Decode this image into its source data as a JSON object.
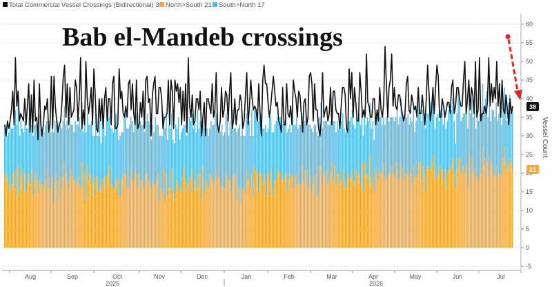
{
  "chart_data": {
    "type": "bar",
    "title": "Bab el-Mandeb crossings",
    "ylabel": "Vessel Count",
    "ylim": [
      -5,
      62
    ],
    "yticks": [
      -5,
      0,
      5,
      10,
      15,
      20,
      25,
      30,
      35,
      40,
      45,
      50,
      55,
      60
    ],
    "grid": true,
    "legend_position": "top-left",
    "legend": [
      {
        "label": "Total Commercial Vessel Crossings (Bidirectional) 38",
        "color": "#111111"
      },
      {
        "label": "North>South 21",
        "color": "#f5a833"
      },
      {
        "label": "South>North 17",
        "color": "#56bde6"
      }
    ],
    "x_month_labels": [
      "Aug",
      "Sep",
      "Oct",
      "Nov",
      "Dec",
      "Jan",
      "Feb",
      "Mar",
      "Apr",
      "May",
      "Jun",
      "Jul"
    ],
    "x_year_labels": [
      "2025",
      "2026"
    ],
    "last_values": {
      "total": "38",
      "north_south": "21"
    },
    "series_names": [
      "Total Commercial Vessel Crossings (Bidirectional)",
      "North>South",
      "South>North"
    ],
    "series": [
      {
        "name": "North>South",
        "values": [
          20,
          18,
          20,
          17,
          15,
          17,
          20,
          16,
          21,
          14,
          22,
          16,
          19,
          21,
          15,
          20,
          15,
          18,
          20,
          17,
          21,
          14,
          18,
          20,
          18,
          15,
          18,
          17,
          17,
          16,
          18,
          21,
          16,
          19,
          16,
          19,
          12,
          17,
          20,
          18,
          13,
          19,
          16,
          19,
          23,
          20,
          18,
          16,
          19,
          21,
          19,
          18,
          18,
          17,
          19,
          17,
          16,
          23,
          16,
          20,
          13,
          22,
          18,
          20,
          19,
          17,
          14,
          19,
          19,
          15,
          17,
          15,
          18,
          19,
          16,
          19,
          20,
          22,
          17,
          17,
          16,
          16,
          19,
          18,
          14,
          14,
          18,
          19,
          20,
          20,
          16,
          16,
          19,
          21,
          18,
          18,
          21,
          20,
          16,
          20,
          18,
          18,
          16,
          17,
          20,
          20,
          18,
          17,
          16,
          18,
          17,
          17,
          18,
          20,
          13,
          16,
          15,
          21,
          13,
          20,
          14,
          16,
          16,
          21,
          15,
          13,
          16,
          18,
          17,
          15,
          15,
          19,
          22,
          18,
          17,
          15,
          19,
          18,
          21,
          15,
          18,
          16,
          20,
          16,
          20,
          13,
          22,
          15,
          18,
          17,
          16,
          20,
          19,
          18,
          17,
          19,
          21,
          19,
          19,
          16,
          17,
          16,
          16,
          20,
          19,
          18,
          18,
          15,
          19,
          20,
          20,
          13,
          17,
          16,
          12,
          16,
          16,
          15,
          21,
          18,
          18,
          16,
          20,
          14,
          22,
          21,
          20,
          15,
          20,
          20,
          17,
          20,
          18,
          14,
          20,
          18,
          21,
          14,
          16,
          18,
          18,
          21,
          20,
          20,
          18,
          18,
          19,
          20,
          15,
          18,
          20,
          19,
          20,
          16,
          19,
          20,
          17,
          17,
          17,
          22,
          18,
          21,
          17,
          21,
          16,
          19,
          15,
          17,
          19,
          20,
          14,
          14,
          22,
          22,
          17,
          20,
          19,
          21,
          17,
          18,
          20,
          23,
          18,
          22,
          17,
          20,
          20,
          17,
          18,
          21,
          16,
          18,
          16,
          20,
          19,
          18,
          21,
          18,
          17,
          21,
          19,
          20,
          17,
          23,
          15,
          23,
          19,
          20,
          17,
          25,
          19,
          17,
          15,
          21,
          20,
          18,
          21,
          20,
          20,
          23,
          19,
          18,
          19,
          20,
          20,
          22,
          20,
          19,
          23,
          21,
          18,
          19,
          23,
          21,
          18,
          20,
          20,
          19,
          21,
          20,
          17,
          22,
          19,
          19,
          20,
          23,
          23,
          18,
          22,
          20,
          15,
          21,
          22,
          21,
          21,
          23,
          25,
          18,
          21,
          19,
          20,
          22,
          21,
          18,
          21,
          16,
          20,
          21,
          21,
          22,
          24,
          20,
          16,
          21,
          24,
          24,
          20,
          21,
          22,
          20,
          22,
          17,
          25,
          20,
          24,
          20,
          21,
          19,
          19,
          18,
          21,
          20,
          27,
          22,
          24,
          23,
          19,
          24,
          21,
          23,
          20,
          19,
          22,
          19,
          20,
          20,
          19,
          24,
          27,
          23,
          21,
          22,
          24,
          23,
          21
        ]
      },
      {
        "name": "South>North",
        "values": [
          13,
          14,
          10,
          14,
          18,
          15,
          12,
          17,
          16,
          19,
          20,
          14,
          15,
          11,
          16,
          14,
          17,
          14,
          15,
          14,
          12,
          16,
          15,
          13,
          12,
          16,
          18,
          15,
          13,
          15,
          15,
          13,
          15,
          15,
          15,
          15,
          19,
          17,
          13,
          16,
          18,
          14,
          16,
          15,
          15,
          13,
          16,
          16,
          16,
          12,
          14,
          13,
          16,
          16,
          14,
          18,
          16,
          16,
          15,
          16,
          18,
          14,
          15,
          13,
          15,
          13,
          16,
          18,
          11,
          15,
          17,
          13,
          16,
          13,
          14,
          15,
          18,
          13,
          15,
          15,
          15,
          17,
          17,
          15,
          15,
          16,
          13,
          12,
          16,
          16,
          16,
          16,
          14,
          14,
          16,
          13,
          14,
          16,
          16,
          13,
          16,
          15,
          17,
          14,
          14,
          16,
          16,
          16,
          13,
          15,
          14,
          18,
          15,
          13,
          17,
          14,
          15,
          15,
          19,
          16,
          15,
          17,
          16,
          15,
          14,
          15,
          17,
          14,
          18,
          14,
          16,
          13,
          11,
          15,
          13,
          16,
          16,
          16,
          15,
          17,
          15,
          15,
          17,
          16,
          14,
          18,
          12,
          17,
          15,
          15,
          14,
          12,
          15,
          15,
          16,
          18,
          15,
          14,
          13,
          15,
          16,
          14,
          15,
          16,
          16,
          12,
          16,
          17,
          18,
          12,
          12,
          18,
          15,
          17,
          18,
          18,
          14,
          15,
          15,
          16,
          16,
          14,
          17,
          16,
          15,
          16,
          15,
          19,
          15,
          16,
          15,
          12,
          15,
          17,
          12,
          17,
          14,
          17,
          15,
          15,
          16,
          14,
          15,
          15,
          16,
          15,
          15,
          14,
          16,
          14,
          13,
          12,
          16,
          17,
          14,
          15,
          15,
          16,
          16,
          14,
          15,
          13,
          16,
          14,
          17,
          14,
          17,
          14,
          14,
          13,
          17,
          16,
          13,
          17,
          15,
          14,
          15,
          13,
          16,
          15,
          14,
          12,
          16,
          12,
          14,
          14,
          12,
          17,
          16,
          15,
          16,
          13,
          16,
          14,
          15,
          17,
          16,
          15,
          15,
          14,
          15,
          16,
          16,
          13,
          15,
          12,
          14,
          15,
          17,
          14,
          13,
          17,
          14,
          14,
          15,
          16,
          14,
          15,
          13,
          12,
          14,
          17,
          17,
          14,
          15,
          13,
          15,
          15,
          12,
          16,
          15,
          16,
          17,
          14,
          17,
          16,
          15,
          17,
          12,
          15,
          17,
          16,
          12,
          15,
          15,
          16,
          13,
          16,
          15,
          16,
          17,
          15,
          14,
          16,
          18,
          17,
          14,
          14,
          14,
          17,
          14,
          15,
          18,
          15,
          16,
          16,
          14,
          16,
          17,
          15,
          16,
          14,
          12,
          15,
          18,
          16,
          14,
          14,
          14,
          16,
          16,
          15,
          17,
          16,
          16,
          15,
          16,
          13,
          16,
          16,
          15,
          15,
          17,
          16,
          16,
          19,
          16,
          14,
          13,
          14,
          17,
          16,
          17,
          15,
          16,
          17,
          14,
          16,
          16,
          18,
          13,
          17,
          17,
          15,
          17,
          16,
          15,
          12,
          17,
          17
        ]
      }
    ],
    "total_overlay_values": [
      33,
      30,
      34,
      32,
      34,
      37,
      42,
      33,
      51,
      38,
      42,
      34,
      36,
      35,
      34,
      40,
      33,
      38,
      44,
      31,
      41,
      31,
      45,
      34,
      35,
      29,
      44,
      34,
      30,
      33,
      38,
      37,
      40,
      31,
      33,
      46,
      32,
      46,
      38,
      34,
      31,
      33,
      34,
      39,
      46,
      49,
      35,
      44,
      33,
      43,
      35,
      36,
      37,
      45,
      43,
      34,
      40,
      51,
      32,
      37,
      33,
      50,
      40,
      36,
      39,
      43,
      33,
      48,
      41,
      32,
      31,
      40,
      34,
      40,
      32,
      40,
      43,
      34,
      40,
      40,
      33,
      44,
      46,
      32,
      32,
      33,
      48,
      40,
      42,
      36,
      35,
      38,
      35,
      44,
      45,
      37,
      44,
      36,
      33,
      45,
      32,
      33,
      39,
      35,
      42,
      32,
      45,
      46,
      39,
      40,
      30,
      41,
      44,
      46,
      36,
      36,
      43,
      43,
      40,
      32,
      35,
      35,
      36,
      45,
      33,
      45,
      42,
      32,
      45,
      42,
      44,
      39,
      43,
      33,
      42,
      34,
      44,
      31,
      51,
      38,
      35,
      41,
      33,
      34,
      40,
      40,
      37,
      42,
      30,
      35,
      39,
      30,
      40,
      40,
      38,
      36,
      44,
      35,
      37,
      47,
      33,
      31,
      34,
      43,
      35,
      37,
      42,
      41,
      34,
      42,
      47,
      32,
      34,
      40,
      33,
      37,
      37,
      41,
      39,
      32,
      34,
      41,
      47,
      33,
      38,
      45,
      40,
      37,
      38,
      37,
      34,
      44,
      36,
      30,
      45,
      49,
      44,
      44,
      39,
      35,
      38,
      42,
      46,
      42,
      38,
      39,
      34,
      33,
      31,
      43,
      33,
      33,
      44,
      36,
      35,
      38,
      33,
      45,
      42,
      40,
      35,
      42,
      41,
      36,
      31,
      39,
      40,
      33,
      35,
      46,
      47,
      44,
      34,
      44,
      37,
      37,
      32,
      30,
      34,
      47,
      35,
      37,
      38,
      34,
      36,
      43,
      33,
      42,
      42,
      37,
      36,
      36,
      32,
      38,
      43,
      43,
      41,
      32,
      31,
      48,
      40,
      47,
      35,
      43,
      39,
      34,
      34,
      47,
      42,
      35,
      37,
      35,
      52,
      39,
      38,
      35,
      35,
      40,
      40,
      33,
      37,
      34,
      43,
      37,
      35,
      39,
      54,
      44,
      35,
      43,
      45,
      52,
      38,
      43,
      38,
      37,
      41,
      41,
      38,
      36,
      34,
      36,
      44,
      46,
      37,
      36,
      41,
      39,
      37,
      38,
      35,
      43,
      36,
      36,
      41,
      37,
      33,
      40,
      49,
      42,
      34,
      37,
      43,
      36,
      43,
      49,
      46,
      35,
      35,
      40,
      38,
      35,
      37,
      39,
      39,
      36,
      43,
      45,
      36,
      38,
      43,
      43,
      40,
      38,
      38,
      45,
      50,
      36,
      40,
      45,
      37,
      43,
      41,
      36,
      50,
      35,
      37,
      51,
      34,
      36,
      36,
      38,
      36,
      39,
      51,
      38,
      44,
      39,
      43,
      40,
      50,
      38,
      44,
      35,
      45,
      37,
      36,
      41,
      37,
      33,
      40,
      36,
      38
    ]
  }
}
